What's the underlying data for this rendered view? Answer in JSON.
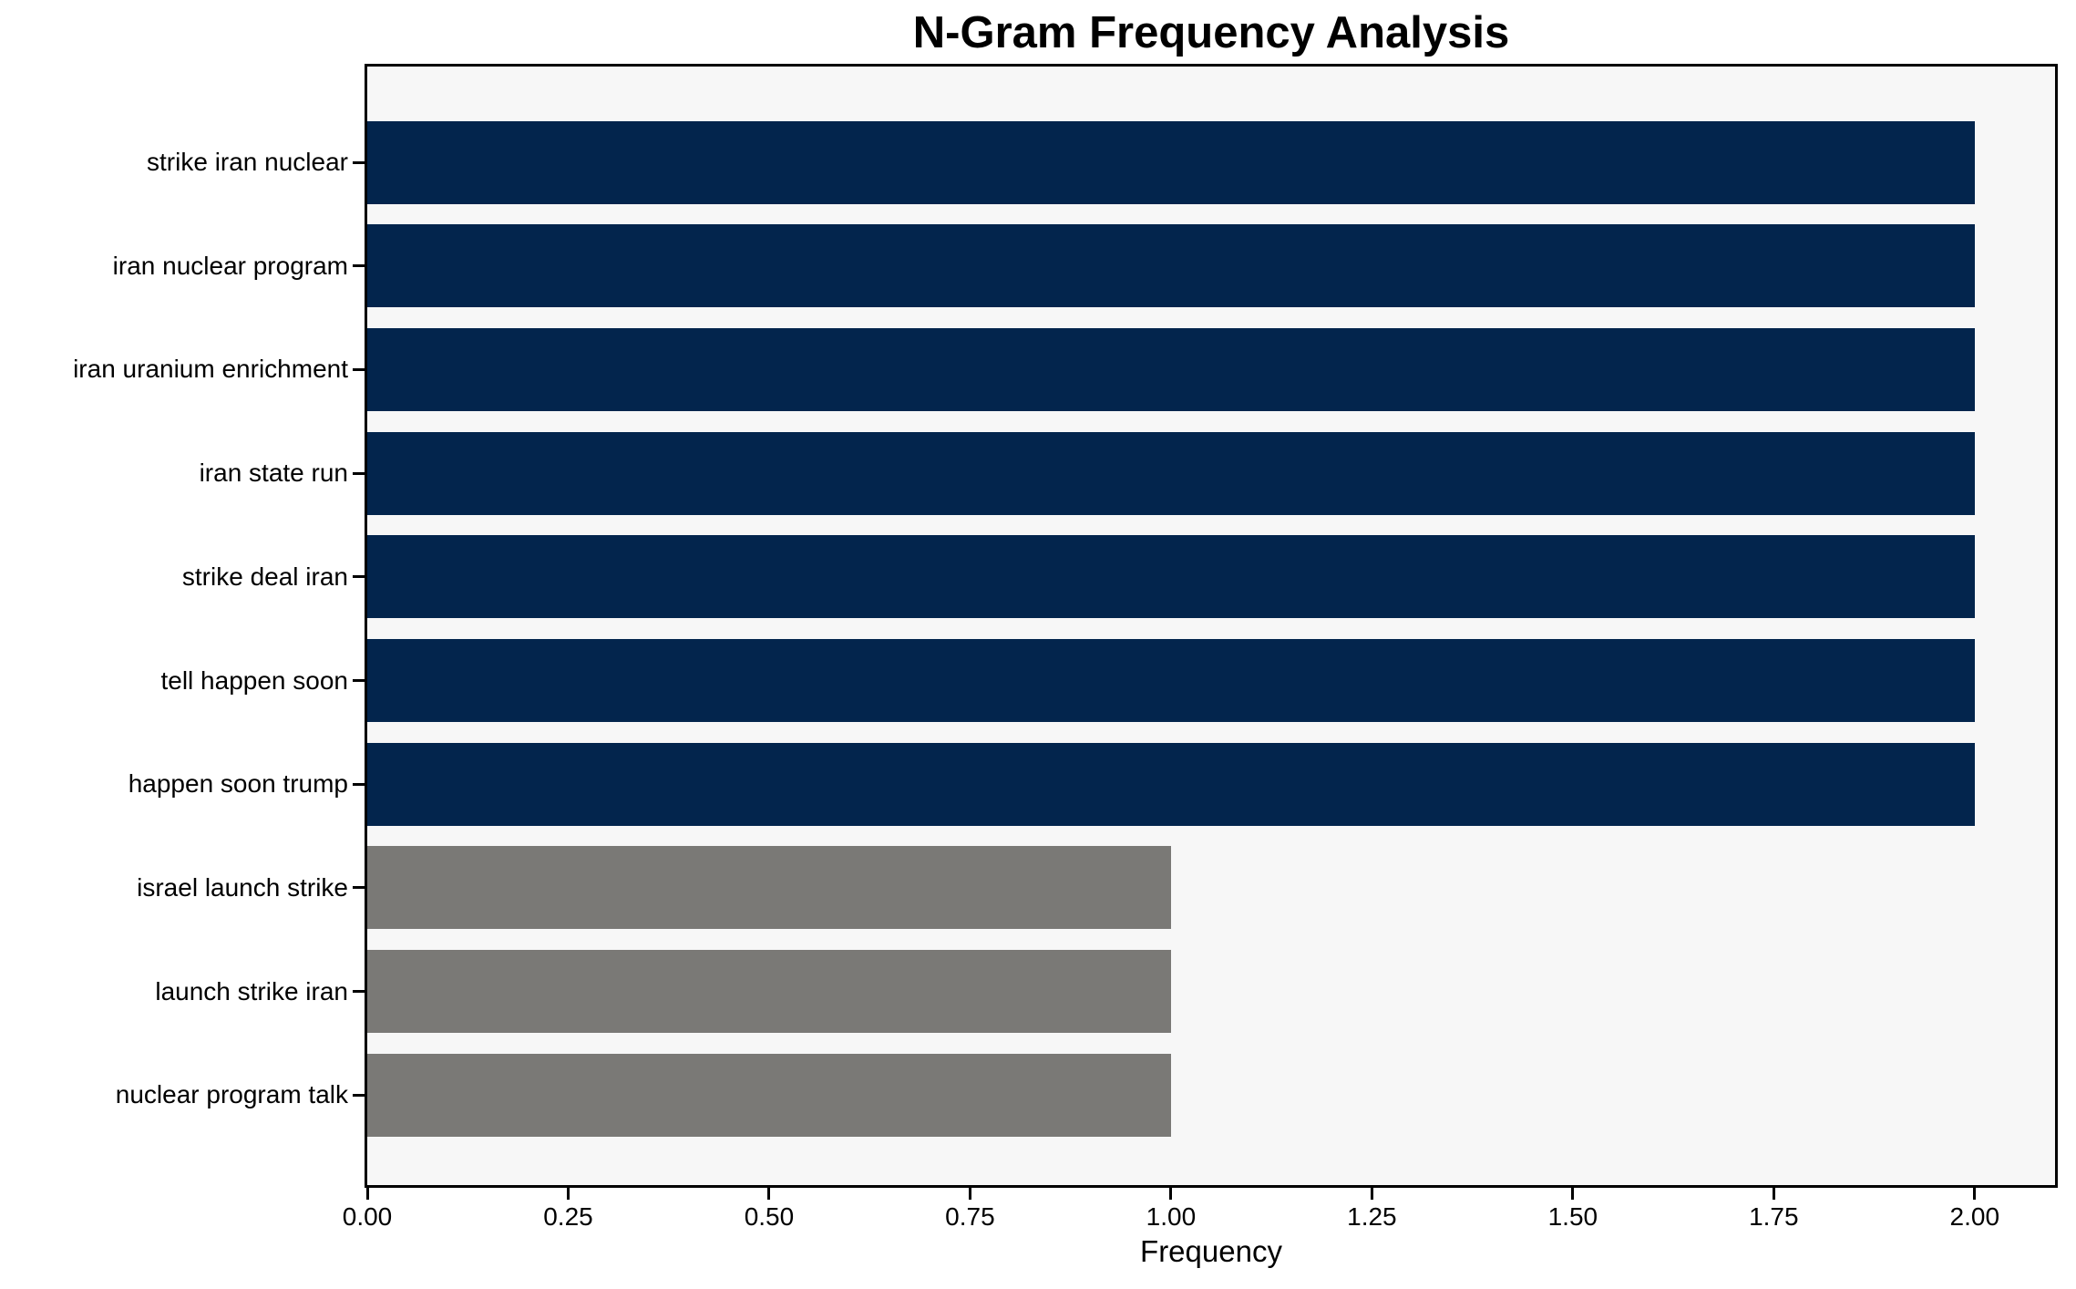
{
  "chart_data": {
    "type": "bar",
    "orientation": "horizontal",
    "title": "N-Gram Frequency Analysis",
    "xlabel": "Frequency",
    "ylabel": "",
    "categories": [
      "strike iran nuclear",
      "iran nuclear program",
      "iran uranium enrichment",
      "iran state run",
      "strike deal iran",
      "tell happen soon",
      "happen soon trump",
      "israel launch strike",
      "launch strike iran",
      "nuclear program talk"
    ],
    "values": [
      2,
      2,
      2,
      2,
      2,
      2,
      2,
      1,
      1,
      1
    ],
    "bar_colors": [
      "#03254D",
      "#03254D",
      "#03254D",
      "#03254D",
      "#03254D",
      "#03254D",
      "#03254D",
      "#7A7976",
      "#7A7976",
      "#7A7976"
    ],
    "x_tick_labels": [
      "0.00",
      "0.25",
      "0.50",
      "0.75",
      "1.00",
      "1.25",
      "1.50",
      "1.75",
      "2.00"
    ],
    "x_tick_values": [
      0,
      0.25,
      0.5,
      0.75,
      1.0,
      1.25,
      1.5,
      1.75,
      2.0
    ],
    "xlim": [
      0,
      2.1
    ],
    "grid": false,
    "legend": false,
    "colors": {
      "high_frequency_bar": "#03254D",
      "low_frequency_bar": "#7A7976",
      "plot_background": "#F7F7F7",
      "figure_background": "#FFFFFF",
      "spine": "#000000",
      "text": "#000000"
    }
  }
}
